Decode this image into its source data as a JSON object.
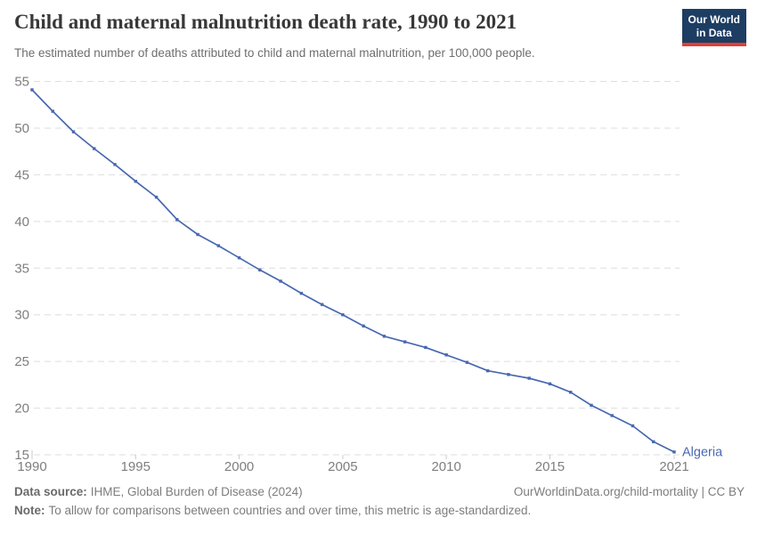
{
  "header": {
    "title": "Child and maternal malnutrition death rate, 1990 to 2021",
    "subtitle": "The estimated number of deaths attributed to child and maternal malnutrition, per 100,000 people.",
    "logo": {
      "line1": "Our World",
      "line2": "in Data",
      "bg_color": "#1d3d63",
      "accent_color": "#e23d33"
    }
  },
  "chart_data": {
    "type": "line",
    "title": "Child and maternal malnutrition death rate, 1990 to 2021",
    "xlabel": "",
    "ylabel": "",
    "xlim": [
      1990,
      2021
    ],
    "ylim": [
      15,
      55
    ],
    "x_ticks": [
      1990,
      1995,
      2000,
      2005,
      2010,
      2015,
      2021
    ],
    "y_ticks": [
      15,
      20,
      25,
      30,
      35,
      40,
      45,
      50,
      55
    ],
    "grid": "horizontal-dashed",
    "legend_position": "line-end-label",
    "x": [
      1990,
      1991,
      1992,
      1993,
      1994,
      1995,
      1996,
      1997,
      1998,
      1999,
      2000,
      2001,
      2002,
      2003,
      2004,
      2005,
      2006,
      2007,
      2008,
      2009,
      2010,
      2011,
      2012,
      2013,
      2014,
      2015,
      2016,
      2017,
      2018,
      2019,
      2020,
      2021
    ],
    "series": [
      {
        "name": "Algeria",
        "color": "#4868b0",
        "values": [
          54.1,
          51.8,
          49.6,
          47.8,
          46.1,
          44.3,
          42.6,
          40.2,
          38.6,
          37.4,
          36.1,
          34.8,
          33.6,
          32.3,
          31.1,
          30.0,
          28.8,
          27.7,
          27.1,
          26.5,
          25.7,
          24.9,
          24.0,
          23.6,
          23.2,
          22.6,
          21.7,
          20.3,
          19.2,
          18.1,
          16.4,
          15.3
        ]
      }
    ]
  },
  "footer": {
    "datasource_label": "Data source:",
    "datasource_value": "IHME, Global Burden of Disease (2024)",
    "link": "OurWorldinData.org/child-mortality | CC BY",
    "note_label": "Note:",
    "note_value": "To allow for comparisons between countries and over time, this metric is age-standardized."
  }
}
